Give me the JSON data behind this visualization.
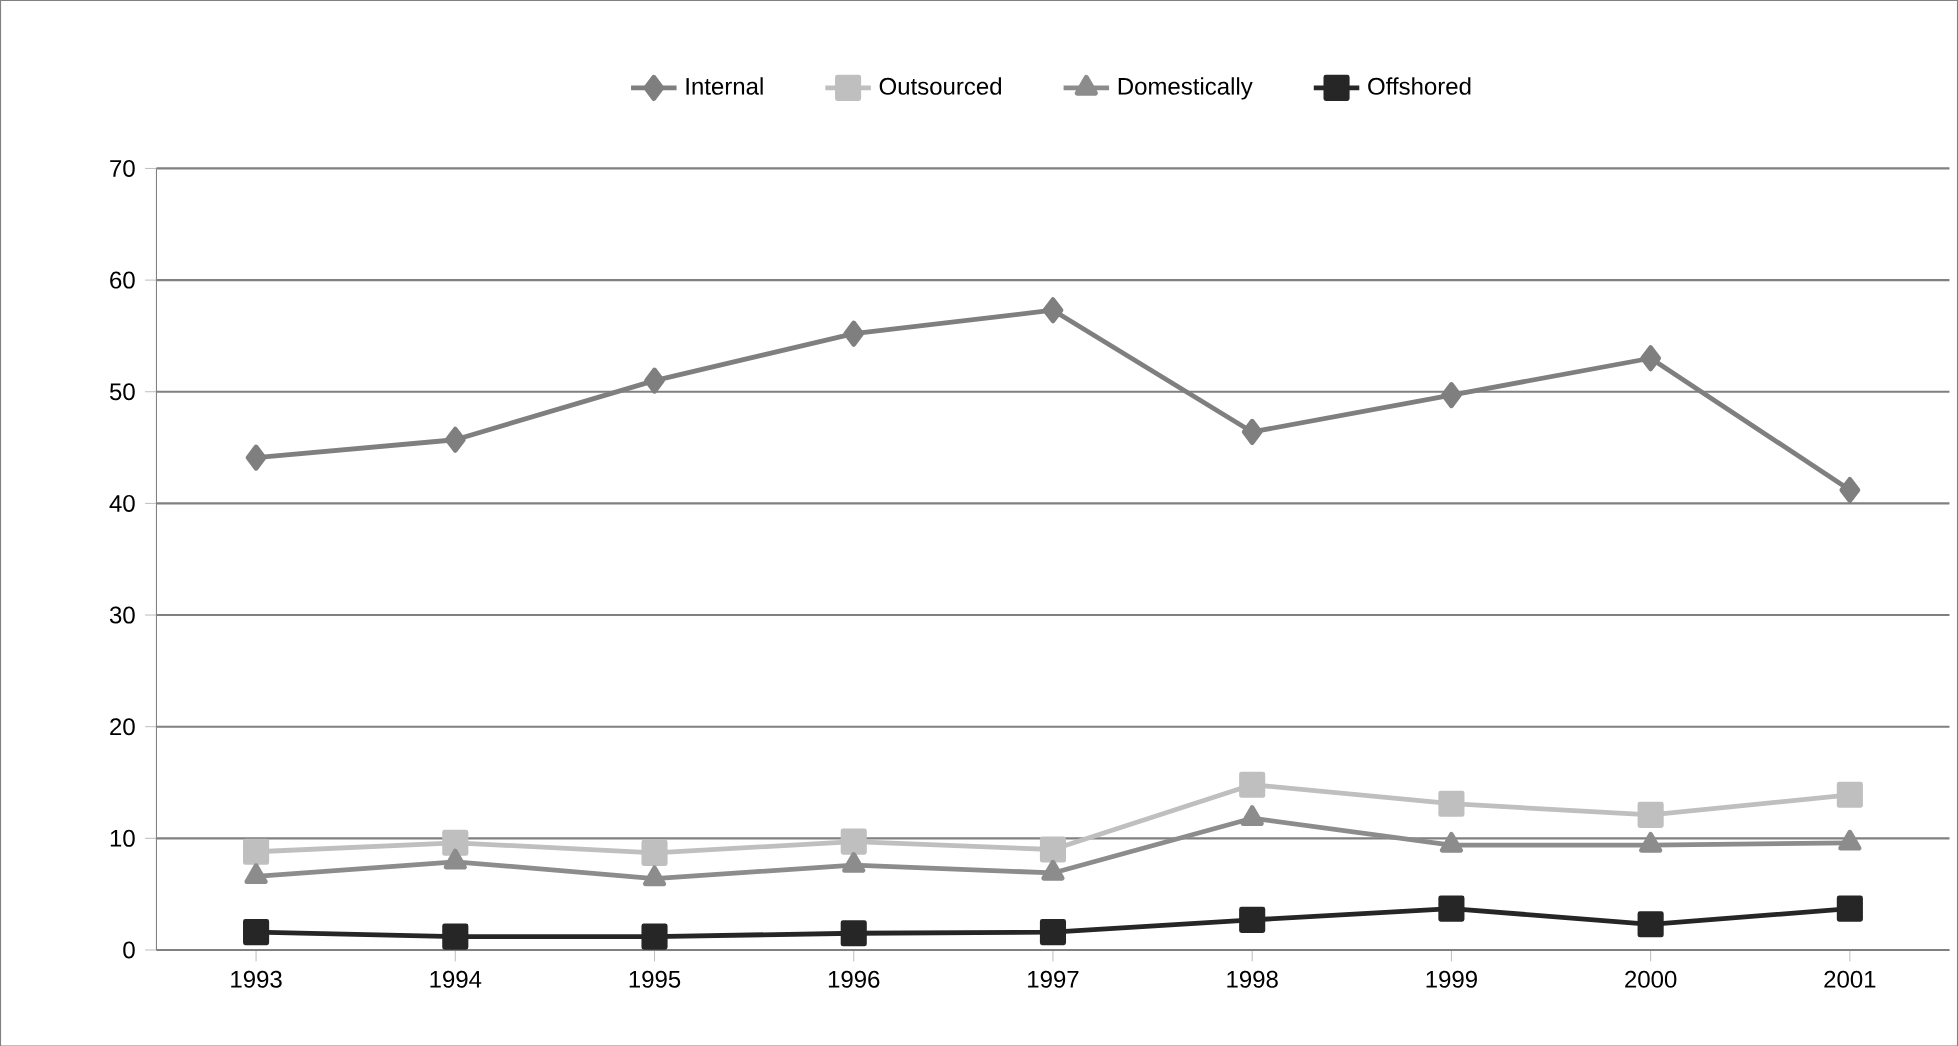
{
  "chart_data": {
    "type": "line",
    "categories": [
      "1993",
      "1994",
      "1995",
      "1996",
      "1997",
      "1998",
      "1999",
      "2000",
      "2001"
    ],
    "series": [
      {
        "name": "Internal",
        "color": "#7f7f7f",
        "marker": "diamond",
        "values": [
          44.1,
          45.7,
          51.0,
          55.2,
          57.3,
          46.4,
          49.7,
          53.0,
          41.2
        ]
      },
      {
        "name": "Outsourced",
        "color": "#bfbfbf",
        "marker": "square",
        "values": [
          8.8,
          9.6,
          8.7,
          9.7,
          9.0,
          14.8,
          13.1,
          12.1,
          13.9
        ]
      },
      {
        "name": "Domestically",
        "color": "#8c8c8c",
        "marker": "triangle",
        "values": [
          6.6,
          7.9,
          6.4,
          7.6,
          6.9,
          11.8,
          9.4,
          9.4,
          9.6
        ]
      },
      {
        "name": "Offshored",
        "color": "#262626",
        "marker": "square",
        "values": [
          1.6,
          1.2,
          1.2,
          1.5,
          1.6,
          2.7,
          3.7,
          2.3,
          3.7
        ]
      }
    ],
    "ylim": [
      0,
      70
    ],
    "yticks": [
      0,
      10,
      20,
      30,
      40,
      50,
      60,
      70
    ],
    "grid": "y",
    "legend": "top",
    "line_style": "solid"
  }
}
